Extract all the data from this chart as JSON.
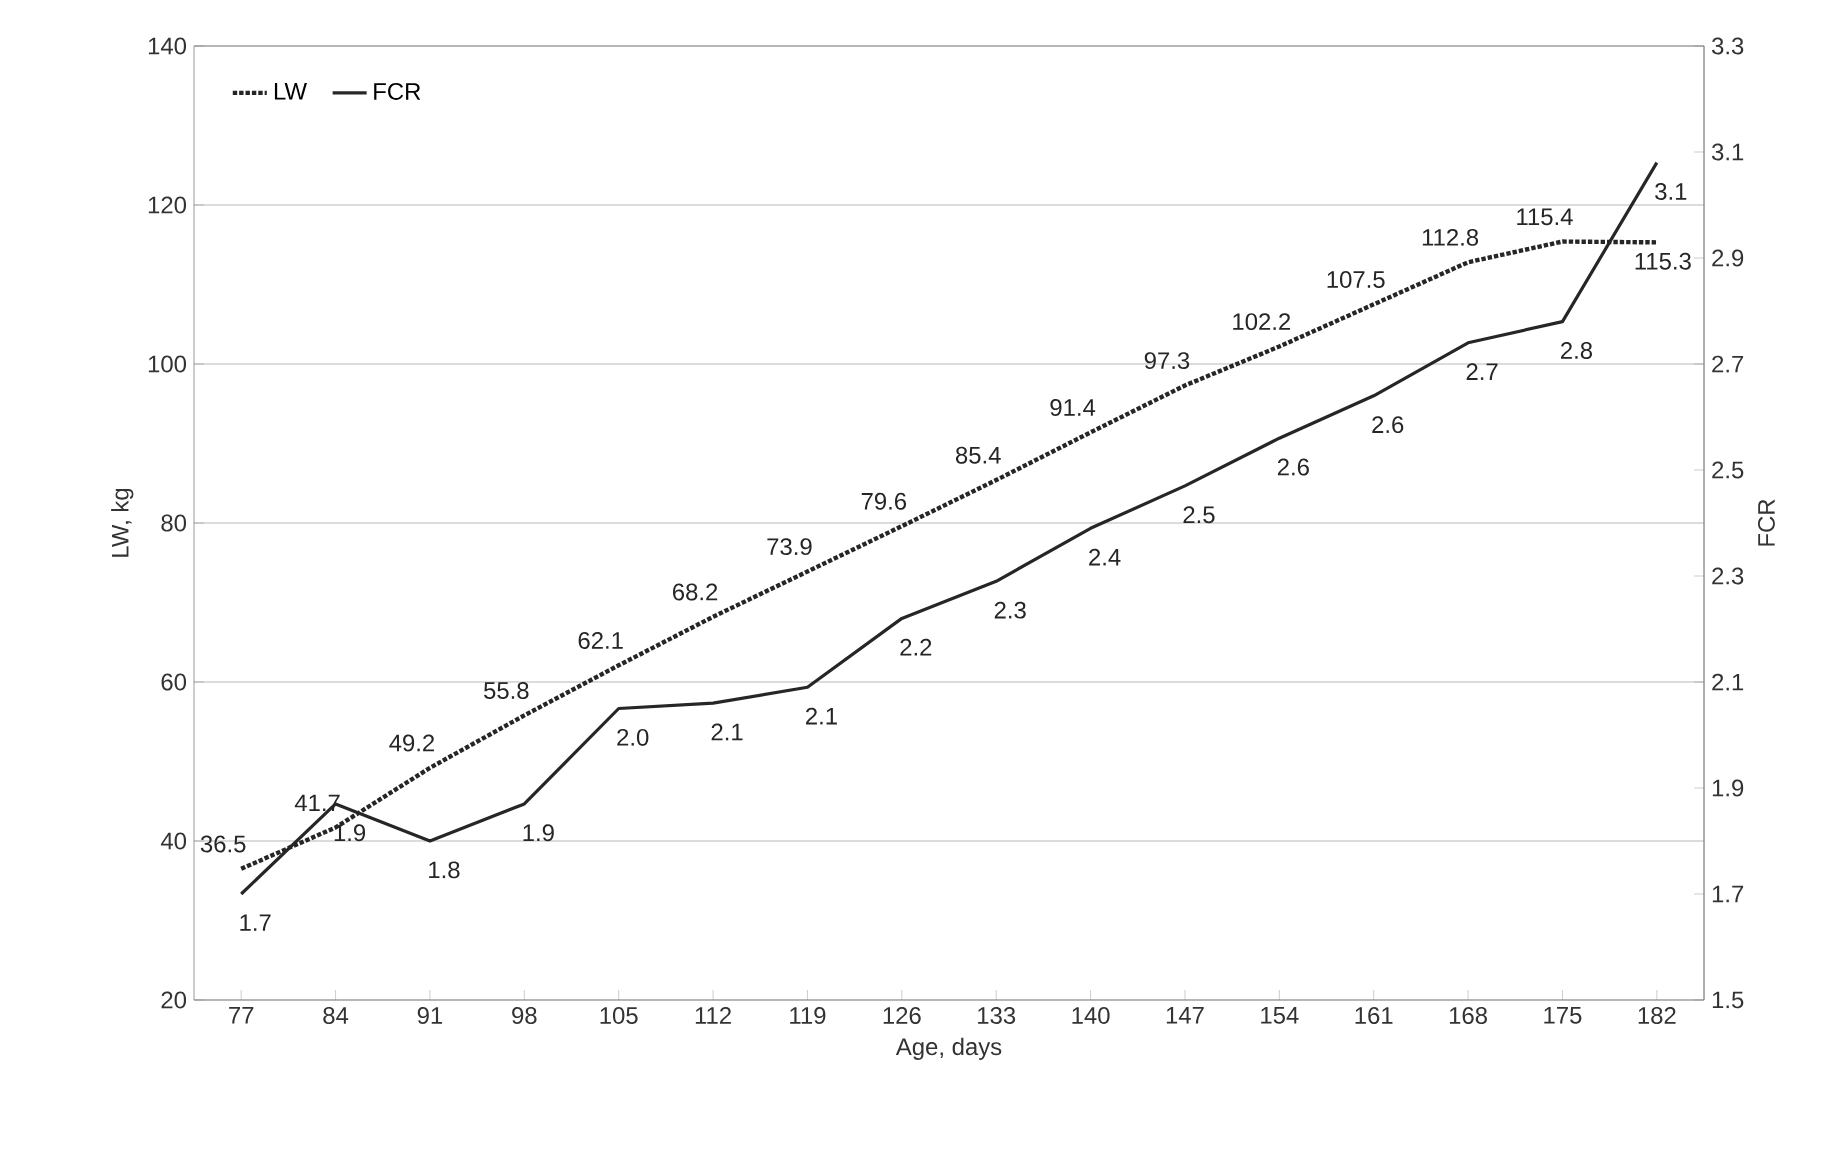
{
  "chart_data": {
    "type": "line",
    "xlabel": "Age, days",
    "ylabel": "LW, kg",
    "y2label": "FCR",
    "categories": [
      "77",
      "84",
      "91",
      "98",
      "105",
      "112",
      "119",
      "126",
      "133",
      "140",
      "147",
      "154",
      "161",
      "168",
      "175",
      "182"
    ],
    "series": [
      {
        "name": "LW",
        "color": "#262626",
        "line_style": "dotted",
        "values": [
          36.5,
          41.7,
          49.2,
          55.8,
          62.1,
          68.2,
          73.9,
          79.6,
          85.4,
          91.4,
          97.3,
          102.2,
          107.5,
          112.8,
          115.4,
          115.3
        ],
        "value_labels": [
          "36.5",
          "41.7",
          "49.2",
          "55.8",
          "62.1",
          "68.2",
          "73.9",
          "79.6",
          "85.4",
          "91.4",
          "97.3",
          "102.2",
          "107.5",
          "112.8",
          "115.4",
          "115.3"
        ]
      },
      {
        "name": "FCR",
        "color": "#262626",
        "line_style": "solid",
        "axis": "y2",
        "values": [
          1.7,
          1.87,
          1.8,
          1.87,
          2.05,
          2.06,
          2.09,
          2.22,
          2.29,
          2.39,
          2.47,
          2.56,
          2.64,
          2.74,
          2.78,
          3.08
        ],
        "value_labels": [
          "1.7",
          "1.9",
          "1.8",
          "1.9",
          "2.0",
          "2.1",
          "2.1",
          "2.2",
          "2.3",
          "2.4",
          "2.5",
          "2.6",
          "2.6",
          "2.7",
          "2.8",
          "3.1"
        ]
      }
    ],
    "ylim": [
      20,
      140
    ],
    "yticks": [
      20,
      40,
      60,
      80,
      100,
      120,
      140
    ],
    "y2lim": [
      1.5,
      3.3
    ],
    "y2ticks": [
      1.5,
      1.7,
      1.9,
      2.1,
      2.3,
      2.5,
      2.7,
      2.9,
      3.1,
      3.3
    ],
    "grid": "y",
    "legend": "top left"
  }
}
